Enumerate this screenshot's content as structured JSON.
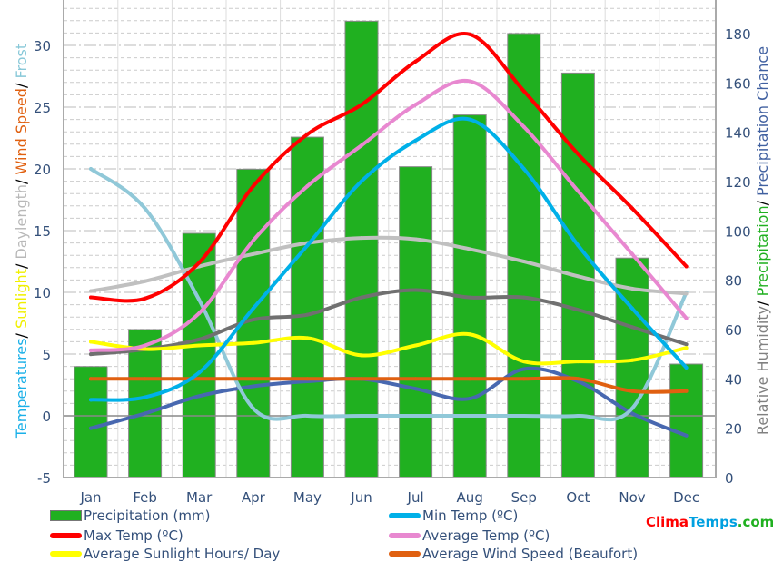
{
  "chart_data": {
    "type": "bar+line",
    "categories": [
      "Jan",
      "Feb",
      "Mar",
      "Apr",
      "May",
      "Jun",
      "Jul",
      "Aug",
      "Sep",
      "Oct",
      "Nov",
      "Dec"
    ],
    "left_axis": {
      "label_parts": [
        {
          "text": "Temperatures",
          "color": "#1ab0e8"
        },
        {
          "text": "/ ",
          "color": "#000000"
        },
        {
          "text": "Sunlight",
          "color": "#f0f000"
        },
        {
          "text": "/ ",
          "color": "#000000"
        },
        {
          "text": "Daylength",
          "color": "#b8b8b8"
        },
        {
          "text": "/ ",
          "color": "#000000"
        },
        {
          "text": "Wind Speed",
          "color": "#e06010"
        },
        {
          "text": "/ ",
          "color": "#000000"
        },
        {
          "text": "Frost",
          "color": "#88c8d8"
        }
      ],
      "ylim": [
        -5,
        35
      ],
      "ticks": [
        -5,
        0,
        5,
        10,
        15,
        20,
        25,
        30
      ]
    },
    "right_axis": {
      "label_parts": [
        {
          "text": "Relative Humidity",
          "color": "#808080"
        },
        {
          "text": "/ ",
          "color": "#000000"
        },
        {
          "text": "Precipitation",
          "color": "#20b020"
        },
        {
          "text": "/ ",
          "color": "#000000"
        },
        {
          "text": "Precipitation Chance",
          "color": "#4060a0"
        }
      ],
      "ylim": [
        0,
        180
      ],
      "ticks": [
        0,
        20,
        40,
        60,
        80,
        100,
        120,
        140,
        160,
        180
      ]
    },
    "bars": {
      "name": "Precipitation (mm)",
      "color": "#20b020",
      "axis": "right",
      "values": [
        45,
        60,
        99,
        125,
        138,
        185,
        126,
        147,
        180,
        164,
        89,
        46
      ]
    },
    "series": [
      {
        "name": "Min Temp (ºC)",
        "color": "#00b0e8",
        "axis": "left",
        "values": [
          1.3,
          1.5,
          3.5,
          8.7,
          13.8,
          19,
          22.3,
          24,
          20,
          13.8,
          8.7,
          3.9
        ],
        "legend": true
      },
      {
        "name": "Max Temp (ºC)",
        "color": "#ff0000",
        "axis": "left",
        "values": [
          9.6,
          9.5,
          12.4,
          18.6,
          22.8,
          25.2,
          28.7,
          30.9,
          26.3,
          21.2,
          16.8,
          12.1
        ],
        "legend": true
      },
      {
        "name": "Average Temp (ºC)",
        "color": "#e888d0",
        "axis": "left",
        "values": [
          5.3,
          5.7,
          8.3,
          14.2,
          18.6,
          21.9,
          25.2,
          27.1,
          23.4,
          18.2,
          13.1,
          7.9
        ],
        "legend": true
      },
      {
        "name": "Average Sunlight Hours/ Day",
        "color": "#ffff00",
        "axis": "left",
        "values": [
          6,
          5.4,
          5.7,
          5.9,
          6.3,
          4.9,
          5.7,
          6.6,
          4.4,
          4.4,
          4.5,
          5.5
        ],
        "legend": true
      },
      {
        "name": "Average Wind Speed (Beaufort)",
        "color": "#e06010",
        "axis": "left",
        "values": [
          3,
          3,
          3,
          3,
          3,
          3,
          3,
          3,
          3,
          3,
          2,
          2
        ],
        "legend": true
      },
      {
        "name": "Daylength",
        "color": "#c0c0c0",
        "axis": "left",
        "values": [
          10.1,
          10.9,
          12.1,
          13.1,
          14,
          14.4,
          14.3,
          13.5,
          12.5,
          11.3,
          10.3,
          9.9
        ],
        "legend": false
      },
      {
        "name": "Relative Humidity",
        "color": "#707070",
        "axis": "right",
        "values": [
          50,
          52,
          56,
          64,
          66,
          73,
          76,
          73,
          73,
          68,
          61,
          54
        ],
        "legend": false
      },
      {
        "name": "Frost",
        "color": "#90c8d8",
        "axis": "left",
        "values": [
          20,
          16.8,
          9.4,
          0.6,
          0,
          0,
          0,
          0,
          0,
          0,
          0.6,
          10
        ],
        "legend": false
      },
      {
        "name": "Precipitation Chance",
        "color": "#4868b0",
        "axis": "right",
        "values": [
          20,
          26,
          33,
          37,
          39,
          40,
          36,
          32,
          44,
          39,
          26,
          17
        ],
        "legend": false
      }
    ]
  },
  "brand": {
    "clima": "Clima",
    "temps": "Temps",
    ".com": ".com"
  }
}
